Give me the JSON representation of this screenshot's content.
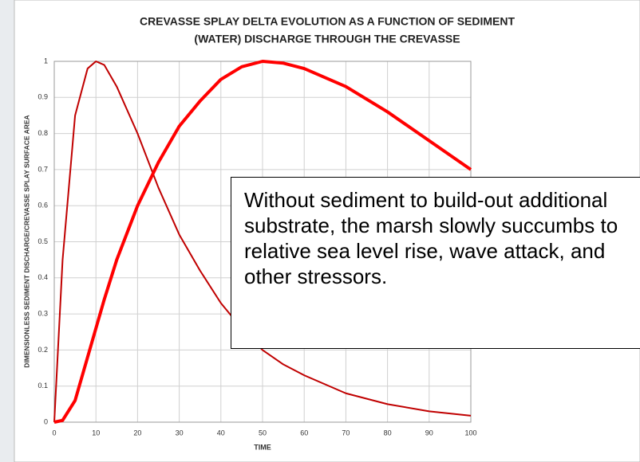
{
  "chart_data": {
    "type": "line",
    "title": "CREVASSE SPLAY DELTA EVOLUTION AS A FUNCTION OF SEDIMENT",
    "subtitle": "(WATER) DISCHARGE THROUGH THE CREVASSE",
    "x_label": "TIME",
    "y_label": "DIMENSIONLESS SEDIMENT DISCHARGE/CREVASSE SPLAY SURFACE AREA",
    "annotation": "Without sediment to build-out additional substrate, the marsh slowly succumbs to relative sea level rise, wave attack, and other stressors.",
    "x": [
      0,
      2,
      5,
      8,
      10,
      12,
      15,
      20,
      25,
      30,
      35,
      40,
      45,
      50,
      55,
      60,
      70,
      80,
      90,
      100
    ],
    "series": [
      {
        "color": "#c00000",
        "width": 2,
        "values": [
          0,
          0.45,
          0.85,
          0.98,
          1.0,
          0.99,
          0.93,
          0.8,
          0.65,
          0.52,
          0.42,
          0.33,
          0.26,
          0.2,
          0.16,
          0.13,
          0.08,
          0.05,
          0.03,
          0.018
        ]
      },
      {
        "color": "#ff0000",
        "width": 4,
        "values": [
          0,
          0.005,
          0.06,
          0.18,
          0.26,
          0.34,
          0.45,
          0.6,
          0.72,
          0.82,
          0.89,
          0.95,
          0.985,
          1.0,
          0.995,
          0.98,
          0.93,
          0.86,
          0.78,
          0.7
        ]
      }
    ],
    "xlim": [
      0,
      100
    ],
    "xticks": [
      0,
      10,
      20,
      30,
      40,
      50,
      60,
      70,
      80,
      90,
      100
    ],
    "ylim": [
      0,
      1
    ],
    "yticks": [
      0,
      0.1,
      0.2,
      0.3,
      0.4,
      0.5,
      0.6,
      0.7,
      0.8,
      0.9,
      1
    ],
    "grid": true
  }
}
